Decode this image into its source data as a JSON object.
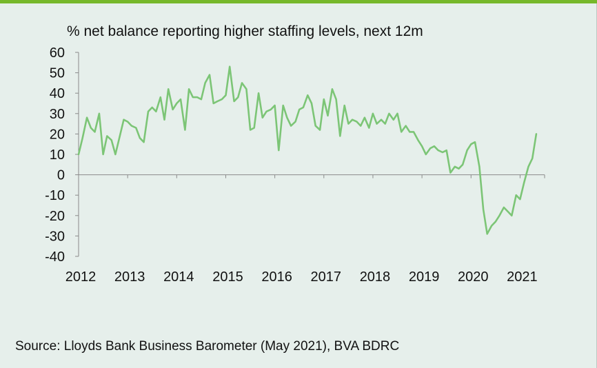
{
  "chart_data": {
    "type": "line",
    "title": "% net balance reporting higher staffing levels, next 12m",
    "source": "Source: Lloyds Bank Business Barometer (May 2021), BVA BDRC",
    "ylim": [
      -40,
      60
    ],
    "yticks": [
      60,
      50,
      40,
      30,
      20,
      10,
      0,
      -10,
      -20,
      -30,
      -40
    ],
    "xlim": [
      2012,
      2021.5
    ],
    "xticks": [
      "2012",
      "2013",
      "2014",
      "2015",
      "2016",
      "2017",
      "2018",
      "2019",
      "2020",
      "2021"
    ],
    "grid": false,
    "legend": "none",
    "series": [
      {
        "color": "#7cc576",
        "points": [
          [
            2012.0,
            10
          ],
          [
            2012.08,
            18
          ],
          [
            2012.17,
            28
          ],
          [
            2012.25,
            23
          ],
          [
            2012.33,
            21
          ],
          [
            2012.42,
            30
          ],
          [
            2012.5,
            10
          ],
          [
            2012.58,
            19
          ],
          [
            2012.67,
            17
          ],
          [
            2012.75,
            10
          ],
          [
            2012.83,
            18
          ],
          [
            2012.92,
            27
          ],
          [
            2013.0,
            26
          ],
          [
            2013.08,
            24
          ],
          [
            2013.17,
            23
          ],
          [
            2013.25,
            18
          ],
          [
            2013.33,
            16
          ],
          [
            2013.42,
            31
          ],
          [
            2013.5,
            33
          ],
          [
            2013.58,
            31
          ],
          [
            2013.67,
            38
          ],
          [
            2013.75,
            27
          ],
          [
            2013.83,
            42
          ],
          [
            2013.92,
            32
          ],
          [
            2014.0,
            35
          ],
          [
            2014.08,
            37
          ],
          [
            2014.17,
            22
          ],
          [
            2014.25,
            42
          ],
          [
            2014.33,
            38
          ],
          [
            2014.42,
            38
          ],
          [
            2014.5,
            37
          ],
          [
            2014.58,
            45
          ],
          [
            2014.67,
            49
          ],
          [
            2014.75,
            35
          ],
          [
            2014.83,
            36
          ],
          [
            2014.92,
            37
          ],
          [
            2015.0,
            39
          ],
          [
            2015.08,
            53
          ],
          [
            2015.17,
            36
          ],
          [
            2015.25,
            38
          ],
          [
            2015.33,
            45
          ],
          [
            2015.42,
            42
          ],
          [
            2015.5,
            22
          ],
          [
            2015.58,
            23
          ],
          [
            2015.67,
            40
          ],
          [
            2015.75,
            28
          ],
          [
            2015.83,
            31
          ],
          [
            2015.92,
            32
          ],
          [
            2016.0,
            34
          ],
          [
            2016.08,
            12
          ],
          [
            2016.17,
            34
          ],
          [
            2016.25,
            28
          ],
          [
            2016.33,
            24
          ],
          [
            2016.42,
            26
          ],
          [
            2016.5,
            32
          ],
          [
            2016.58,
            33
          ],
          [
            2016.67,
            39
          ],
          [
            2016.75,
            35
          ],
          [
            2016.83,
            24
          ],
          [
            2016.92,
            22
          ],
          [
            2017.0,
            37
          ],
          [
            2017.08,
            29
          ],
          [
            2017.17,
            42
          ],
          [
            2017.25,
            37
          ],
          [
            2017.33,
            19
          ],
          [
            2017.42,
            34
          ],
          [
            2017.5,
            25
          ],
          [
            2017.58,
            27
          ],
          [
            2017.67,
            26
          ],
          [
            2017.75,
            24
          ],
          [
            2017.83,
            28
          ],
          [
            2017.92,
            23
          ],
          [
            2018.0,
            30
          ],
          [
            2018.08,
            25
          ],
          [
            2018.17,
            27
          ],
          [
            2018.25,
            25
          ],
          [
            2018.33,
            30
          ],
          [
            2018.42,
            27
          ],
          [
            2018.5,
            30
          ],
          [
            2018.58,
            21
          ],
          [
            2018.67,
            24
          ],
          [
            2018.75,
            21
          ],
          [
            2018.83,
            21
          ],
          [
            2018.92,
            17
          ],
          [
            2019.0,
            14
          ],
          [
            2019.08,
            10
          ],
          [
            2019.17,
            13
          ],
          [
            2019.25,
            14
          ],
          [
            2019.33,
            12
          ],
          [
            2019.42,
            11
          ],
          [
            2019.5,
            12
          ],
          [
            2019.58,
            1
          ],
          [
            2019.67,
            4
          ],
          [
            2019.75,
            3
          ],
          [
            2019.83,
            5
          ],
          [
            2019.92,
            12
          ],
          [
            2020.0,
            15
          ],
          [
            2020.08,
            16
          ],
          [
            2020.17,
            4
          ],
          [
            2020.25,
            -17
          ],
          [
            2020.33,
            -29
          ],
          [
            2020.42,
            -25
          ],
          [
            2020.5,
            -23
          ],
          [
            2020.58,
            -20
          ],
          [
            2020.67,
            -16
          ],
          [
            2020.75,
            -18
          ],
          [
            2020.83,
            -20
          ],
          [
            2020.92,
            -10
          ],
          [
            2021.0,
            -12
          ],
          [
            2021.08,
            -4
          ],
          [
            2021.17,
            4
          ],
          [
            2021.25,
            8
          ],
          [
            2021.33,
            20
          ]
        ]
      }
    ]
  }
}
